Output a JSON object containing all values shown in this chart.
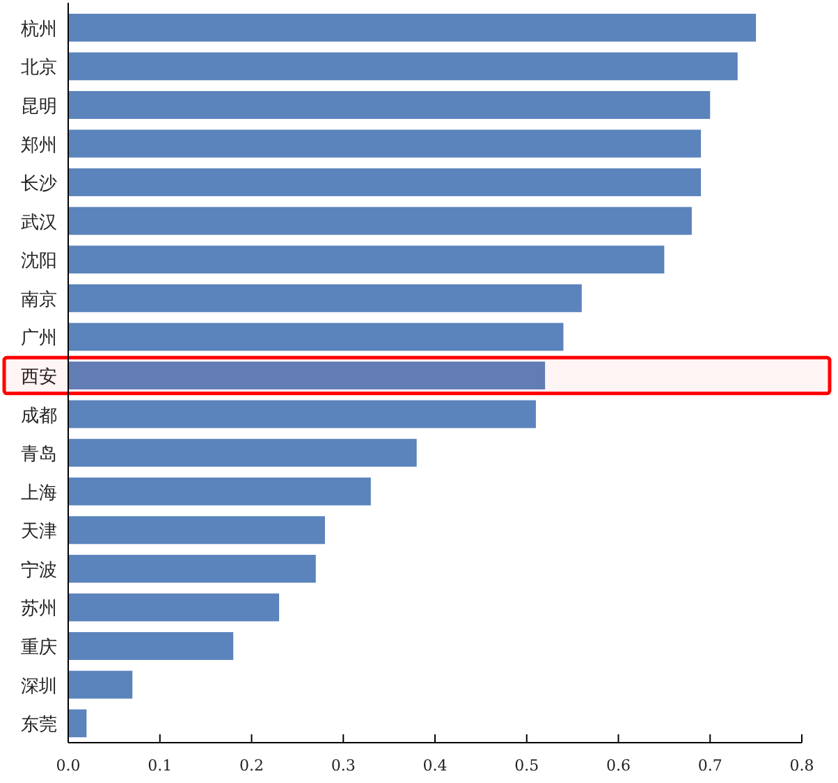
{
  "chart_data": {
    "type": "bar",
    "orientation": "horizontal",
    "categories": [
      "杭州",
      "北京",
      "昆明",
      "郑州",
      "长沙",
      "武汉",
      "沈阳",
      "南京",
      "广州",
      "西安",
      "成都",
      "青岛",
      "上海",
      "天津",
      "宁波",
      "苏州",
      "重庆",
      "深圳",
      "东莞"
    ],
    "values": [
      0.75,
      0.73,
      0.7,
      0.69,
      0.69,
      0.68,
      0.65,
      0.56,
      0.54,
      0.52,
      0.51,
      0.38,
      0.33,
      0.28,
      0.27,
      0.23,
      0.18,
      0.07,
      0.02
    ],
    "color": "#5b83bc",
    "xlim": [
      0,
      0.8
    ],
    "xticks": [
      {
        "value": 0,
        "label": "0.0"
      },
      0.1,
      0.2,
      0.3,
      0.4,
      0.5,
      0.6,
      0.7,
      0.8
    ],
    "bands": [
      {
        "axis": "y",
        "from": "西安",
        "to": "西安",
        "color": "#ff0000"
      }
    ],
    "grid": false
  }
}
